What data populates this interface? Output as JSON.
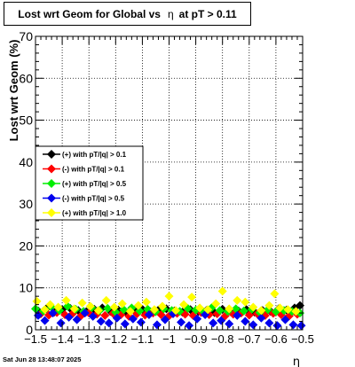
{
  "title": {
    "prefix": "Lost wrt Geom for Global vs",
    "symbol": "η",
    "suffix": "at pT > 0.11"
  },
  "footer": {
    "timestamp": "Sat Jun 28 13:48:07 2025"
  },
  "chart_data": {
    "type": "scatter",
    "xlabel": "η",
    "ylabel": "Lost wrt Geom (%)",
    "xlim": [
      -1.5,
      -0.5
    ],
    "ylim": [
      0,
      70
    ],
    "xticks": [
      -1.5,
      -1.4,
      -1.3,
      -1.2,
      -1.1,
      -1,
      -0.9,
      -0.8,
      -0.7,
      -0.6,
      -0.5
    ],
    "xtick_labels": [
      "−1.5",
      "−1.4",
      "−1.3",
      "−1.2",
      "−1.1",
      "−1",
      "−0.9",
      "−0.8",
      "−0.7",
      "−0.6",
      "−0.5"
    ],
    "yticks": [
      0,
      10,
      20,
      30,
      40,
      50,
      60,
      70
    ],
    "ytick_labels": [
      "0",
      "10",
      "20",
      "30",
      "40",
      "50",
      "60",
      "70"
    ],
    "grid": true,
    "legend_position": "middle-left",
    "series": [
      {
        "name": "(+) with pT/|q| > 0.1",
        "color": "#000000",
        "x": [
          -1.49,
          -1.46,
          -1.43,
          -1.4,
          -1.37,
          -1.34,
          -1.31,
          -1.28,
          -1.25,
          -1.22,
          -1.19,
          -1.16,
          -1.13,
          -1.1,
          -1.07,
          -1.04,
          -1.01,
          -0.98,
          -0.95,
          -0.92,
          -0.89,
          -0.86,
          -0.83,
          -0.8,
          -0.77,
          -0.74,
          -0.71,
          -0.68,
          -0.65,
          -0.62,
          -0.59,
          -0.56,
          -0.53,
          -0.51
        ],
        "y": [
          4.5,
          5.0,
          4.2,
          4.8,
          5.1,
          4.6,
          4.3,
          4.9,
          5.2,
          4.4,
          4.7,
          4.1,
          4.6,
          4.9,
          4.3,
          4.7,
          5.0,
          4.5,
          4.2,
          4.8,
          4.4,
          4.6,
          4.1,
          4.9,
          4.3,
          4.5,
          4.8,
          4.2,
          4.6,
          4.4,
          5.0,
          4.7,
          5.2,
          5.8
        ]
      },
      {
        "name": "(-) with pT/|q| > 0.1",
        "color": "#ff0000",
        "x": [
          -1.48,
          -1.45,
          -1.42,
          -1.39,
          -1.36,
          -1.33,
          -1.3,
          -1.27,
          -1.24,
          -1.21,
          -1.18,
          -1.15,
          -1.12,
          -1.09,
          -1.06,
          -1.03,
          -1.0,
          -0.97,
          -0.94,
          -0.91,
          -0.88,
          -0.85,
          -0.82,
          -0.79,
          -0.76,
          -0.73,
          -0.7,
          -0.67,
          -0.64,
          -0.61,
          -0.58,
          -0.55,
          -0.52
        ],
        "y": [
          3.8,
          3.5,
          4.1,
          3.6,
          3.9,
          3.3,
          4.0,
          3.7,
          3.4,
          3.9,
          3.6,
          3.2,
          3.8,
          3.5,
          4.0,
          3.6,
          3.3,
          3.9,
          3.7,
          3.4,
          4.1,
          3.6,
          3.8,
          3.3,
          3.7,
          4.0,
          3.5,
          3.8,
          3.4,
          3.9,
          3.6,
          3.3,
          3.7
        ]
      },
      {
        "name": "(+) with pT/|q| > 0.5",
        "color": "#00ee00",
        "x": [
          -1.5,
          -1.47,
          -1.44,
          -1.41,
          -1.38,
          -1.35,
          -1.32,
          -1.29,
          -1.26,
          -1.23,
          -1.2,
          -1.17,
          -1.14,
          -1.11,
          -1.08,
          -1.05,
          -1.02,
          -0.99,
          -0.96,
          -0.93,
          -0.9,
          -0.87,
          -0.84,
          -0.81,
          -0.78,
          -0.75,
          -0.72,
          -0.69,
          -0.66,
          -0.63,
          -0.6,
          -0.57,
          -0.54,
          -0.51
        ],
        "y": [
          5.0,
          4.5,
          5.4,
          4.6,
          5.6,
          4.9,
          4.4,
          5.3,
          4.6,
          5.1,
          4.2,
          4.8,
          5.2,
          4.5,
          4.9,
          4.3,
          5.0,
          4.6,
          4.4,
          5.1,
          4.7,
          4.2,
          5.3,
          4.6,
          4.4,
          5.0,
          4.5,
          4.9,
          4.1,
          4.8,
          4.3,
          4.6,
          4.4,
          4.0
        ]
      },
      {
        "name": "(-) with pT/|q| > 0.5",
        "color": "#0000ee",
        "x": [
          -1.49,
          -1.465,
          -1.435,
          -1.405,
          -1.375,
          -1.345,
          -1.315,
          -1.285,
          -1.255,
          -1.225,
          -1.195,
          -1.165,
          -1.135,
          -1.105,
          -1.075,
          -1.045,
          -1.015,
          -0.985,
          -0.955,
          -0.925,
          -0.895,
          -0.865,
          -0.835,
          -0.805,
          -0.775,
          -0.745,
          -0.715,
          -0.685,
          -0.655,
          -0.625,
          -0.595,
          -0.565,
          -0.535,
          -0.505
        ],
        "y": [
          3.4,
          2.2,
          4.0,
          1.6,
          3.0,
          2.4,
          4.0,
          3.2,
          2.0,
          1.6,
          2.8,
          1.4,
          2.6,
          1.8,
          3.6,
          1.2,
          2.4,
          3.8,
          1.8,
          1.0,
          2.6,
          3.6,
          1.6,
          2.2,
          1.4,
          3.4,
          2.0,
          1.2,
          2.8,
          1.6,
          1.0,
          2.4,
          1.2,
          1.0
        ]
      },
      {
        "name": "(+) with pT/|q| > 1.0",
        "color": "#ffff00",
        "x": [
          -1.495,
          -1.465,
          -1.445,
          -1.415,
          -1.385,
          -1.355,
          -1.325,
          -1.295,
          -1.265,
          -1.235,
          -1.205,
          -1.175,
          -1.145,
          -1.115,
          -1.085,
          -1.055,
          -1.025,
          -1.0,
          -0.975,
          -0.945,
          -0.915,
          -0.885,
          -0.855,
          -0.825,
          -0.8,
          -0.775,
          -0.745,
          -0.715,
          -0.685,
          -0.655,
          -0.625,
          -0.605,
          -0.585,
          -0.555,
          -0.525
        ],
        "y": [
          6.8,
          4.8,
          6.0,
          5.4,
          7.0,
          5.0,
          6.4,
          5.6,
          4.6,
          7.0,
          5.4,
          6.2,
          4.4,
          5.8,
          6.6,
          4.8,
          5.6,
          8.0,
          4.6,
          6.0,
          7.8,
          5.2,
          4.8,
          6.2,
          9.2,
          5.0,
          7.0,
          6.6,
          5.4,
          4.6,
          5.8,
          8.6,
          5.2,
          4.8,
          4.4
        ]
      }
    ]
  }
}
